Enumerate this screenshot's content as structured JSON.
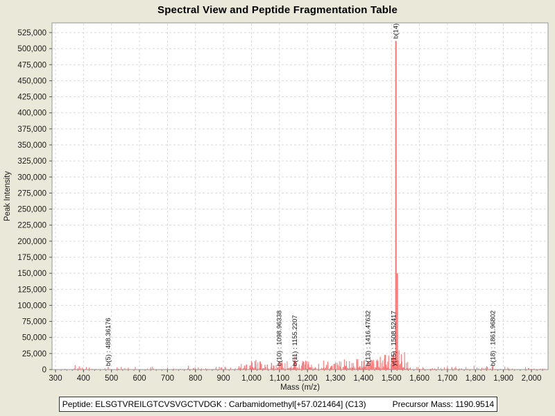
{
  "title": "Spectral View and Peptide Fragmentation Table",
  "footer": {
    "peptide": "Peptide: ELSGTVREILGTCVSVGCTVDGK : Carbamidomethyl[+57.021464] (C13)",
    "precursor": "Precursor Mass: 1190.9514"
  },
  "colors": {
    "page_background": "#eae8d8",
    "plot_background": "#ffffff",
    "grid": "#d9d9d9",
    "axis": "#6e6e6e",
    "plot_border": "#949494",
    "tick_text": "#1b1b1b",
    "peak": "#ff7070",
    "peak_label_text": "#141414"
  },
  "chart_data": {
    "type": "bar",
    "title": "Spectral View and Peptide Fragmentation Table",
    "xlabel": "Mass (m/z)",
    "ylabel": "Peak Intensity",
    "xlim": [
      287,
      2060
    ],
    "ylim": [
      0,
      540000
    ],
    "grid": true,
    "x_ticks": [
      300,
      400,
      500,
      600,
      700,
      800,
      900,
      1000,
      1100,
      1200,
      1300,
      1400,
      1500,
      1600,
      1700,
      1800,
      1900,
      2000
    ],
    "y_ticks": [
      0,
      25000,
      50000,
      75000,
      100000,
      125000,
      150000,
      175000,
      200000,
      225000,
      250000,
      275000,
      300000,
      325000,
      350000,
      375000,
      400000,
      425000,
      450000,
      475000,
      500000,
      525000
    ],
    "labeled_peaks": [
      {
        "label": "b(5) : 488.36176",
        "mz": 488.36176,
        "intensity": 4000
      },
      {
        "label": "b(10) : 1098.96338",
        "mz": 1098.96338,
        "intensity": 12000
      },
      {
        "label": "b(11) : 1155.2207",
        "mz": 1155.2207,
        "intensity": 22000
      },
      {
        "label": "b(13) : 1416.47632",
        "mz": 1416.47632,
        "intensity": 13000
      },
      {
        "label": "y(15) : 1508.52417",
        "mz": 1508.52417,
        "intensity": 28000
      },
      {
        "label": "b(14)",
        "mz": 1516,
        "intensity": 512000
      },
      {
        "label": "b(18) : 1861.96802",
        "mz": 1861.96802,
        "intensity": 6000
      }
    ],
    "extra_peaks": [
      {
        "mz": 370,
        "intensity": 7000
      },
      {
        "mz": 385,
        "intensity": 5000
      },
      {
        "mz": 410,
        "intensity": 4000
      },
      {
        "mz": 520,
        "intensity": 3500
      },
      {
        "mz": 560,
        "intensity": 3000
      },
      {
        "mz": 585,
        "intensity": 4200
      },
      {
        "mz": 640,
        "intensity": 3500
      },
      {
        "mz": 700,
        "intensity": 3200
      },
      {
        "mz": 775,
        "intensity": 6000
      },
      {
        "mz": 810,
        "intensity": 3600
      },
      {
        "mz": 885,
        "intensity": 4200
      },
      {
        "mz": 955,
        "intensity": 5200
      },
      {
        "mz": 975,
        "intensity": 6200
      },
      {
        "mz": 1016,
        "intensity": 15000
      },
      {
        "mz": 1035,
        "intensity": 9000
      },
      {
        "mz": 1110,
        "intensity": 9500
      },
      {
        "mz": 1185,
        "intensity": 12000
      },
      {
        "mz": 1240,
        "intensity": 9000
      },
      {
        "mz": 1300,
        "intensity": 11000
      },
      {
        "mz": 1350,
        "intensity": 13000
      },
      {
        "mz": 1380,
        "intensity": 16000
      },
      {
        "mz": 1425,
        "intensity": 12000
      },
      {
        "mz": 1447,
        "intensity": 14000
      },
      {
        "mz": 1460,
        "intensity": 20000
      },
      {
        "mz": 1475,
        "intensity": 17000
      },
      {
        "mz": 1490,
        "intensity": 22000
      },
      {
        "mz": 1500,
        "intensity": 18000
      },
      {
        "mz": 1521,
        "intensity": 150000
      },
      {
        "mz": 1527,
        "intensity": 30000
      },
      {
        "mz": 1535,
        "intensity": 24000
      },
      {
        "mz": 1547,
        "intensity": 27000
      },
      {
        "mz": 1700,
        "intensity": 5000
      },
      {
        "mz": 1795,
        "intensity": 6000
      },
      {
        "mz": 1840,
        "intensity": 5200
      },
      {
        "mz": 1905,
        "intensity": 4500
      }
    ],
    "noise_seed": 1337,
    "noise_regions": [
      {
        "from": 320,
        "to": 700,
        "count": 40,
        "max": 5000
      },
      {
        "from": 700,
        "to": 950,
        "count": 45,
        "max": 5500
      },
      {
        "from": 950,
        "to": 1150,
        "count": 90,
        "max": 13000
      },
      {
        "from": 950,
        "to": 1560,
        "count": 260,
        "max": 3500
      },
      {
        "from": 1150,
        "to": 1300,
        "count": 90,
        "max": 14000
      },
      {
        "from": 1300,
        "to": 1455,
        "count": 110,
        "max": 16000
      },
      {
        "from": 1455,
        "to": 1518,
        "count": 55,
        "max": 24000
      },
      {
        "from": 1520,
        "to": 1575,
        "count": 40,
        "max": 18000
      },
      {
        "from": 1575,
        "to": 1700,
        "count": 35,
        "max": 4500
      },
      {
        "from": 1700,
        "to": 1880,
        "count": 40,
        "max": 5000
      },
      {
        "from": 1880,
        "to": 2050,
        "count": 30,
        "max": 3500
      }
    ]
  }
}
